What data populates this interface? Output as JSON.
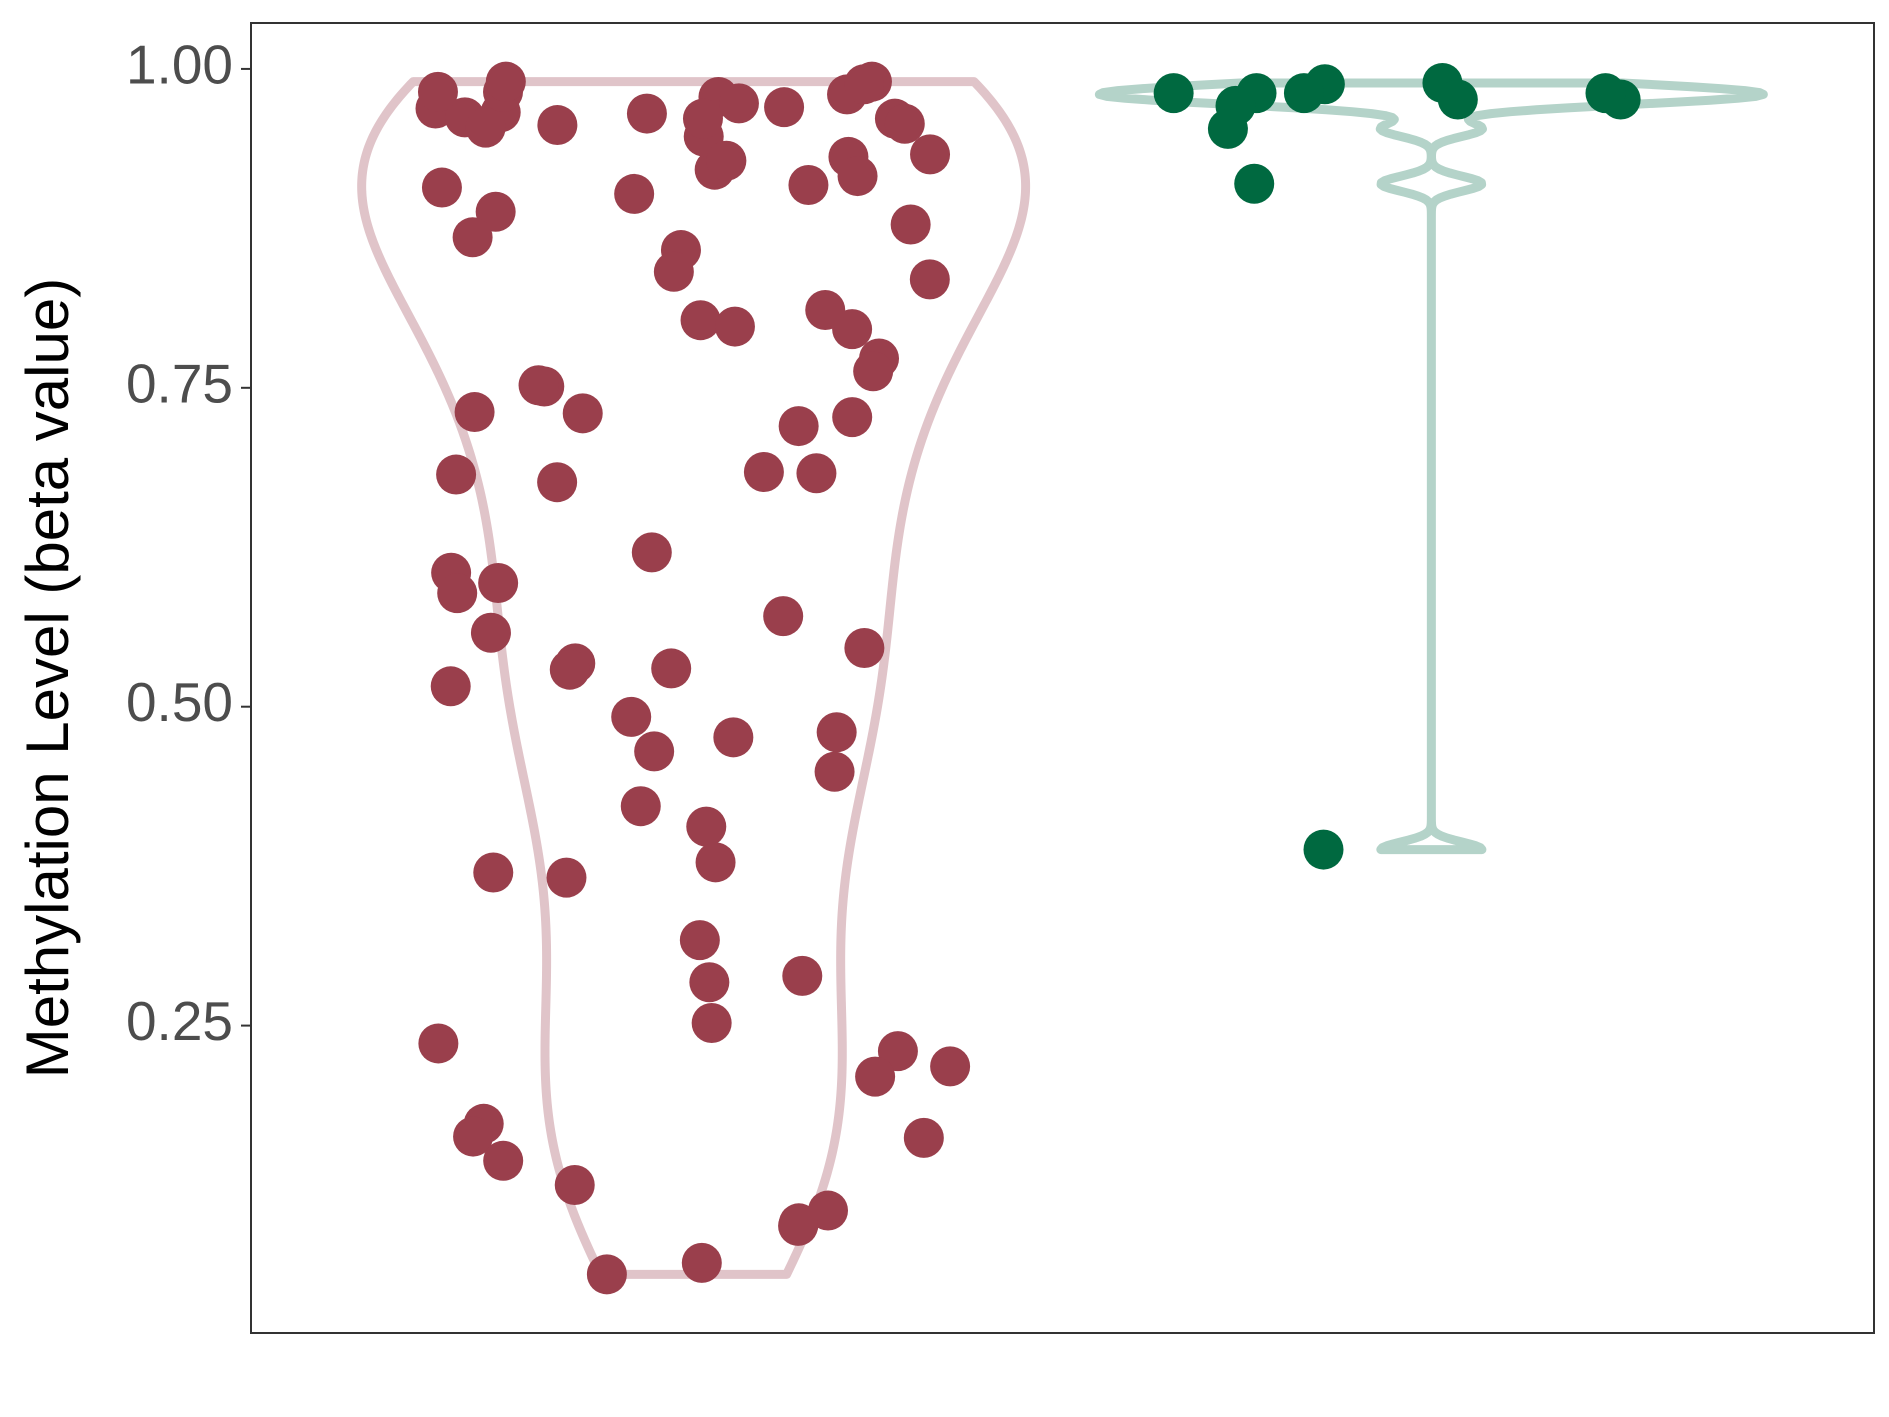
{
  "chart_data": {
    "type": "violin",
    "y_label": "Methylation Level (beta value)",
    "ylim": [
      0.009,
      1.036
    ],
    "yticks": [
      {
        "value": 0.25,
        "label": "0.25"
      },
      {
        "value": 0.5,
        "label": "0.50"
      },
      {
        "value": 0.75,
        "label": "0.75"
      },
      {
        "value": 1,
        "label": "1.00"
      }
    ],
    "series": [
      {
        "color": "#9a3f4c",
        "outline_color": "#e0c4c9",
        "values": [
          0.969,
          0.956,
          0.99,
          0.98,
          0.962,
          0.909,
          0.931,
          0.921,
          0.978,
          0.961,
          0.947,
          0.988,
          0.966,
          0.973,
          0.957,
          0.982,
          0.965,
          0.982,
          0.961,
          0.99,
          0.954,
          0.97,
          0.907,
          0.916,
          0.902,
          0.933,
          0.928,
          0.888,
          0.868,
          0.878,
          0.858,
          0.835,
          0.841,
          0.796,
          0.803,
          0.798,
          0.811,
          0.773,
          0.763,
          0.751,
          0.752,
          0.72,
          0.73,
          0.727,
          0.731,
          0.676,
          0.683,
          0.682,
          0.684,
          0.621,
          0.605,
          0.597,
          0.589,
          0.571,
          0.558,
          0.546,
          0.534,
          0.529,
          0.53,
          0.516,
          0.492,
          0.476,
          0.48,
          0.465,
          0.449,
          0.422,
          0.406,
          0.378,
          0.37,
          0.366,
          0.317,
          0.284,
          0.289,
          0.252,
          0.236,
          0.23,
          0.218,
          0.21,
          0.162,
          0.173,
          0.163,
          0.144,
          0.125,
          0.095,
          0.105,
          0.093,
          0.064,
          0.055
        ]
      },
      {
        "color": "#006940",
        "outline_color": "#b4d3c9",
        "values": [
          0.981,
          0.989,
          0.981,
          0.971,
          0.976,
          0.981,
          0.976,
          0.953,
          0.91,
          0.988,
          0.981,
          0.388
        ]
      }
    ]
  }
}
